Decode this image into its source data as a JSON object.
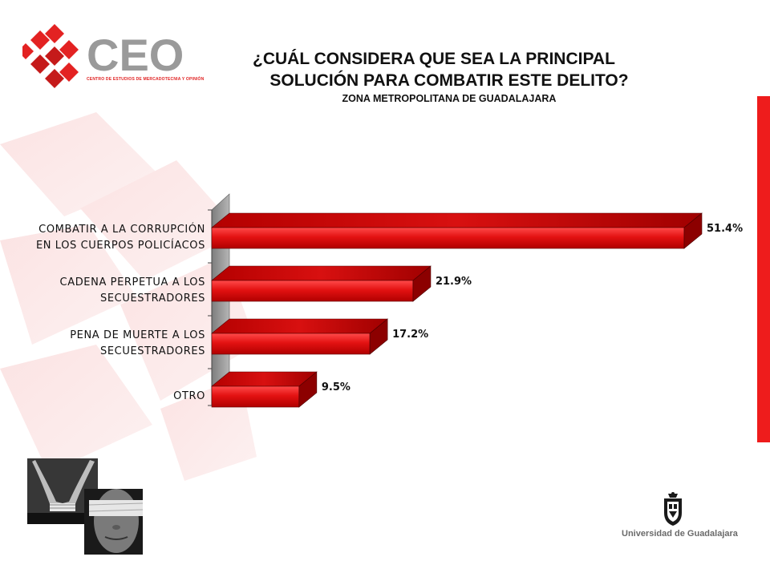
{
  "logo": {
    "text": "CEO",
    "tagline": "CENTRO DE ESTUDIOS DE MERCADOTECNIA Y OPINIÓN",
    "red": "#e32222",
    "gray": "#9a9a9a"
  },
  "title": {
    "line1": "¿CUÁL CONSIDERA QUE SEA LA PRINCIPAL",
    "line2": "SOLUCIÓN PARA COMBATIR ESTE DELITO?",
    "subtitle": "ZONA METROPOLITANA DE GUADALAJARA"
  },
  "chart_data": {
    "type": "bar",
    "orientation": "horizontal",
    "style": "3d",
    "categories": [
      [
        "COMBATIR A LA CORRUPCIÓN",
        "EN LOS CUERPOS POLICÍACOS"
      ],
      [
        "CADENA PERPETUA A LOS",
        "SECUESTRADORES"
      ],
      [
        "PENA DE MUERTE A LOS",
        "SECUESTRADORES"
      ],
      [
        "OTRO"
      ]
    ],
    "values": [
      51.4,
      21.9,
      17.2,
      9.5
    ],
    "data_labels": [
      "51.4%",
      "21.9%",
      "17.2%",
      "9.5%"
    ],
    "xlim": [
      0,
      55
    ],
    "grid": false,
    "legend": "none",
    "colors": {
      "bar": "#e31212",
      "bar_dark": "#8c0000",
      "wall": "#9b9b9b"
    }
  },
  "footer": {
    "university": "Universidad de Guadalajara"
  },
  "accent": "#ee1c1c"
}
